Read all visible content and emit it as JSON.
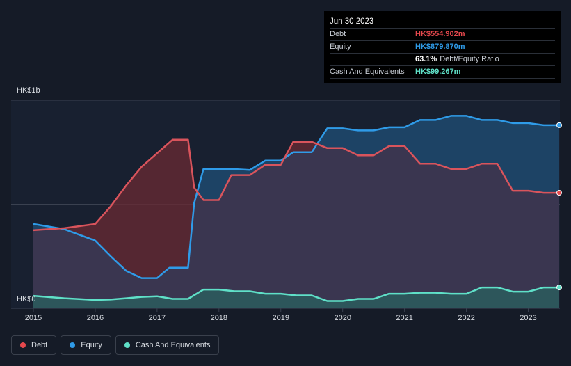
{
  "tooltip": {
    "date": "Jun 30 2023",
    "rows": [
      {
        "label": "Debt",
        "value": "HK$554.902m",
        "color": "#e5484d"
      },
      {
        "label": "Equity",
        "value": "HK$879.870m",
        "color": "#2f9be8"
      },
      {
        "label": "",
        "value": "63.1%",
        "note": "Debt/Equity Ratio",
        "color": "#ffffff"
      },
      {
        "label": "Cash And Equivalents",
        "value": "HK$99.267m",
        "color": "#5fe0c8"
      }
    ]
  },
  "legend": [
    {
      "label": "Debt",
      "color": "#e5484d",
      "icon": "debt-dot-icon"
    },
    {
      "label": "Equity",
      "color": "#2f9be8",
      "icon": "equity-dot-icon"
    },
    {
      "label": "Cash And Equivalents",
      "color": "#5fe0c8",
      "icon": "cash-dot-icon"
    }
  ],
  "chart_data": {
    "type": "area",
    "ylabel_top": "HK$1b",
    "ylabel_bottom": "HK$0",
    "ylim": [
      0,
      1000
    ],
    "xlim": [
      2015,
      2023.5
    ],
    "x_ticks": [
      "2015",
      "2016",
      "2017",
      "2018",
      "2019",
      "2020",
      "2021",
      "2022",
      "2023"
    ],
    "grid": true,
    "legend_position": "bottom-left",
    "series": [
      {
        "name": "Debt",
        "color": "#e5484d",
        "x": [
          2015.0,
          2015.5,
          2016.0,
          2016.25,
          2016.5,
          2016.75,
          2017.0,
          2017.25,
          2017.5,
          2017.6,
          2017.75,
          2018.0,
          2018.2,
          2018.5,
          2018.75,
          2019.0,
          2019.2,
          2019.5,
          2019.75,
          2020.0,
          2020.25,
          2020.5,
          2020.75,
          2021.0,
          2021.25,
          2021.5,
          2021.75,
          2022.0,
          2022.25,
          2022.5,
          2022.75,
          2023.0,
          2023.25,
          2023.5
        ],
        "values": [
          375,
          385,
          405,
          490,
          590,
          680,
          745,
          810,
          810,
          580,
          520,
          520,
          640,
          640,
          690,
          690,
          800,
          800,
          770,
          770,
          735,
          735,
          780,
          780,
          695,
          695,
          670,
          670,
          695,
          695,
          565,
          565,
          555,
          555
        ]
      },
      {
        "name": "Equity",
        "color": "#2f9be8",
        "x": [
          2015.0,
          2015.5,
          2016.0,
          2016.25,
          2016.5,
          2016.75,
          2017.0,
          2017.2,
          2017.5,
          2017.6,
          2017.75,
          2018.0,
          2018.2,
          2018.5,
          2018.75,
          2019.0,
          2019.2,
          2019.5,
          2019.75,
          2020.0,
          2020.25,
          2020.5,
          2020.75,
          2021.0,
          2021.25,
          2021.5,
          2021.75,
          2022.0,
          2022.25,
          2022.5,
          2022.75,
          2023.0,
          2023.25,
          2023.5
        ],
        "values": [
          405,
          380,
          325,
          250,
          180,
          145,
          145,
          195,
          195,
          505,
          670,
          670,
          670,
          665,
          710,
          710,
          750,
          750,
          865,
          865,
          855,
          855,
          870,
          870,
          905,
          905,
          925,
          925,
          905,
          905,
          890,
          890,
          880,
          880
        ]
      },
      {
        "name": "Cash And Equivalents",
        "color": "#5fe0c8",
        "x": [
          2015.0,
          2015.5,
          2016.0,
          2016.25,
          2016.5,
          2016.75,
          2017.0,
          2017.25,
          2017.5,
          2017.75,
          2018.0,
          2018.25,
          2018.5,
          2018.75,
          2019.0,
          2019.25,
          2019.5,
          2019.75,
          2020.0,
          2020.25,
          2020.5,
          2020.75,
          2021.0,
          2021.25,
          2021.5,
          2021.75,
          2022.0,
          2022.25,
          2022.5,
          2022.75,
          2023.0,
          2023.25,
          2023.5
        ],
        "values": [
          60,
          48,
          40,
          42,
          48,
          55,
          58,
          45,
          45,
          90,
          90,
          82,
          82,
          70,
          70,
          62,
          62,
          35,
          35,
          45,
          45,
          70,
          70,
          75,
          75,
          70,
          70,
          100,
          100,
          80,
          80,
          100,
          100
        ]
      }
    ]
  }
}
